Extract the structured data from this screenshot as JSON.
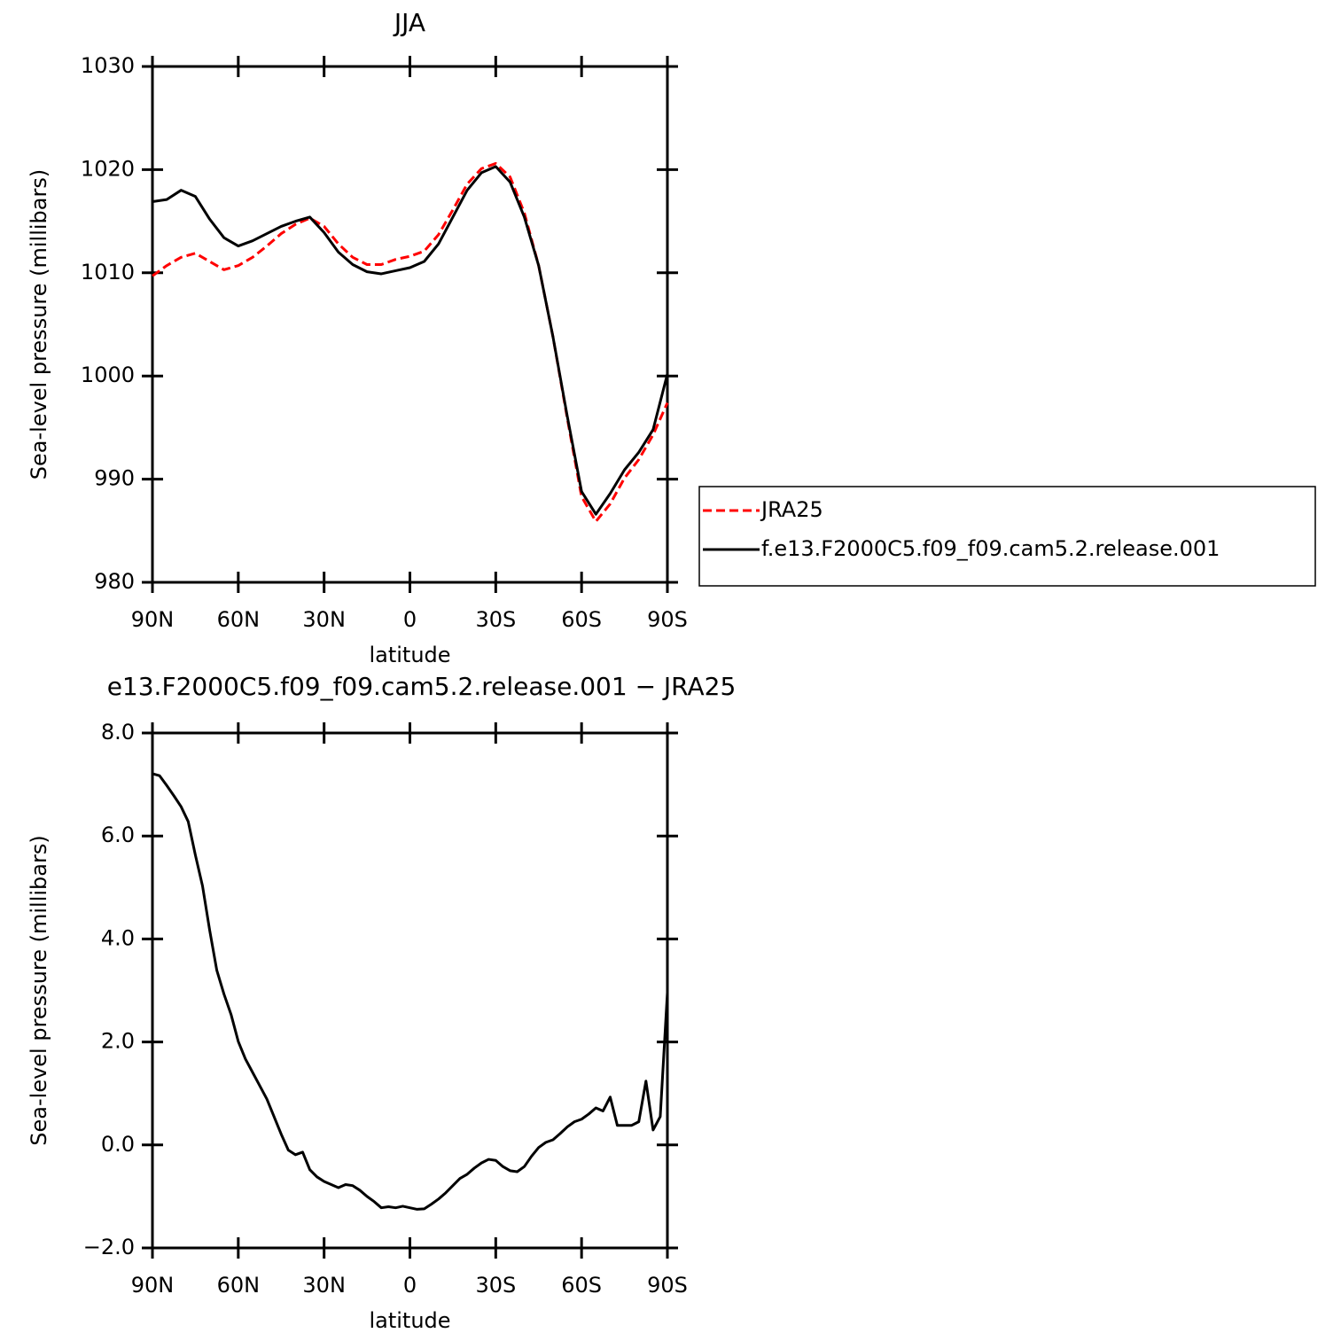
{
  "chart_data": [
    {
      "type": "line",
      "title": "JJA",
      "xlabel": "latitude",
      "ylabel": "Sea-level pressure (millibars)",
      "xlim": [
        90,
        -90
      ],
      "ylim": [
        980,
        1030
      ],
      "xticks": [
        {
          "value": 90,
          "label": "90N"
        },
        {
          "value": 60,
          "label": "60N"
        },
        {
          "value": 30,
          "label": "30N"
        },
        0,
        {
          "value": -30,
          "label": "30S"
        },
        {
          "value": -60,
          "label": "60S"
        },
        {
          "value": -90,
          "label": "90S"
        }
      ],
      "yticks": [
        980,
        990,
        1000,
        1010,
        1020,
        1030
      ],
      "legend": "outside-right",
      "x": [
        90,
        85,
        80,
        75,
        70,
        65,
        60,
        55,
        50,
        45,
        40,
        35,
        30,
        25,
        20,
        15,
        10,
        5,
        0,
        -5,
        -10,
        -15,
        -20,
        -25,
        -30,
        -35,
        -40,
        -45,
        -50,
        -55,
        -60,
        -65,
        -70,
        -75,
        -80,
        -85,
        -90
      ],
      "series": [
        {
          "name": "JRA25",
          "color": "#ff0000",
          "dash": "dashed",
          "values": [
            1009.7,
            1010.7,
            1011.5,
            1011.9,
            1011.1,
            1010.3,
            1010.7,
            1011.5,
            1012.6,
            1013.8,
            1014.7,
            1015.3,
            1014.5,
            1012.8,
            1011.5,
            1010.8,
            1010.8,
            1011.3,
            1011.6,
            1012.1,
            1013.7,
            1016.1,
            1018.6,
            1020.1,
            1020.6,
            1019.3,
            1015.8,
            1010.7,
            1003.8,
            995.9,
            988.3,
            985.9,
            987.6,
            990.1,
            991.9,
            994.3,
            997.4
          ]
        },
        {
          "name": "f.e13.F2000C5.f09_f09.cam5.2.release.001",
          "color": "#000000",
          "dash": "solid",
          "values": [
            1016.9,
            1017.1,
            1018.0,
            1017.4,
            1015.2,
            1013.4,
            1012.6,
            1013.1,
            1013.8,
            1014.5,
            1015.0,
            1015.4,
            1013.9,
            1012.0,
            1010.8,
            1010.1,
            1009.9,
            1010.2,
            1010.5,
            1011.1,
            1012.8,
            1015.4,
            1018.0,
            1019.7,
            1020.3,
            1018.8,
            1015.4,
            1010.7,
            1003.8,
            996.1,
            988.8,
            986.6,
            988.6,
            990.9,
            992.6,
            994.8,
            1000.2
          ]
        }
      ]
    },
    {
      "type": "line",
      "title": "e13.F2000C5.f09_f09.cam5.2.release.001 − JRA25",
      "xlabel": "latitude",
      "ylabel": "Sea-level pressure (millibars)",
      "xlim": [
        90,
        -90
      ],
      "ylim": [
        -2,
        8
      ],
      "xticks": [
        {
          "value": 90,
          "label": "90N"
        },
        {
          "value": 60,
          "label": "60N"
        },
        {
          "value": 30,
          "label": "30N"
        },
        0,
        {
          "value": -30,
          "label": "30S"
        },
        {
          "value": -60,
          "label": "60S"
        },
        {
          "value": -90,
          "label": "90S"
        }
      ],
      "yticks": [
        {
          "value": -2,
          "label": "−2.0"
        },
        {
          "value": 0,
          "label": "0.0"
        },
        {
          "value": 2,
          "label": "2.0"
        },
        {
          "value": 4,
          "label": "4.0"
        },
        {
          "value": 6,
          "label": "6.0"
        },
        {
          "value": 8,
          "label": "8.0"
        }
      ],
      "x": [
        90,
        87.5,
        85,
        82.5,
        80,
        77.5,
        75,
        72.5,
        70,
        67.5,
        65,
        62.5,
        60,
        57.5,
        55,
        52.5,
        50,
        47.5,
        45,
        42.5,
        40,
        37.5,
        35,
        32.5,
        30,
        27.5,
        25,
        22.5,
        20,
        17.5,
        15,
        12.5,
        10,
        7.5,
        5,
        2.5,
        0,
        -2.5,
        -5,
        -7.5,
        -10,
        -12.5,
        -15,
        -17.5,
        -20,
        -22.5,
        -25,
        -27.5,
        -30,
        -32.5,
        -35,
        -37.5,
        -40,
        -42.5,
        -45,
        -47.5,
        -50,
        -52.5,
        -55,
        -57.5,
        -60,
        -62.5,
        -65,
        -67.5,
        -70,
        -72.5,
        -75,
        -77.5,
        -80,
        -82.5,
        -85,
        -87.5,
        -90
      ],
      "series": [
        {
          "color": "#000000",
          "dash": "solid",
          "values": [
            7.21,
            7.17,
            6.98,
            6.78,
            6.57,
            6.28,
            5.63,
            5.03,
            4.17,
            3.39,
            2.93,
            2.53,
            2.01,
            1.67,
            1.41,
            1.15,
            0.89,
            0.55,
            0.21,
            -0.1,
            -0.19,
            -0.14,
            -0.48,
            -0.62,
            -0.71,
            -0.77,
            -0.83,
            -0.77,
            -0.79,
            -0.88,
            -1.0,
            -1.1,
            -1.22,
            -1.2,
            -1.22,
            -1.19,
            -1.22,
            -1.25,
            -1.24,
            -1.15,
            -1.05,
            -0.93,
            -0.79,
            -0.65,
            -0.57,
            -0.45,
            -0.35,
            -0.28,
            -0.3,
            -0.42,
            -0.5,
            -0.52,
            -0.42,
            -0.22,
            -0.05,
            0.05,
            0.1,
            0.22,
            0.35,
            0.45,
            0.5,
            0.6,
            0.72,
            0.66,
            0.93,
            0.38,
            0.38,
            0.38,
            0.45,
            1.24,
            0.29,
            0.55,
            2.96
          ]
        }
      ]
    }
  ]
}
